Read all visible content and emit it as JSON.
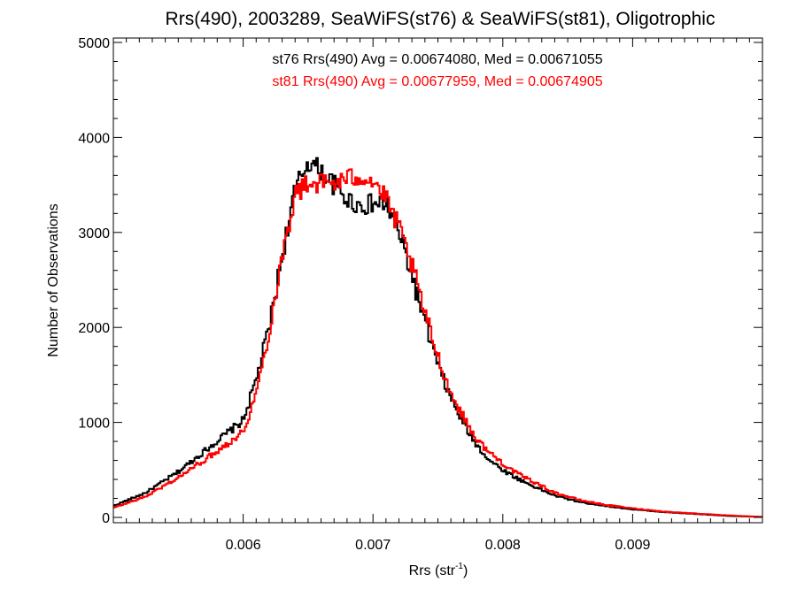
{
  "chart_data": {
    "type": "line",
    "title": "Rrs(490), 2003289, SeaWiFS(st76) & SeaWiFS(st81), Oligotrophic",
    "xlabel": "Rrs (str",
    "xlabel_sup": "-1",
    "xlabel_close": ")",
    "ylabel": "Number of Observations",
    "xlim": [
      0.005,
      0.01
    ],
    "ylim": [
      0,
      5000
    ],
    "x_ticks": [
      0.006,
      0.007,
      0.008,
      0.009
    ],
    "x_tick_labels": [
      "0.006",
      "0.007",
      "0.008",
      "0.009"
    ],
    "y_ticks": [
      0,
      1000,
      2000,
      3000,
      4000,
      5000
    ],
    "y_tick_labels": [
      "0",
      "1000",
      "2000",
      "3000",
      "4000",
      "5000"
    ],
    "grid": false,
    "step": true,
    "legend": [
      {
        "text": "st76 Rrs(490) Avg = 0.00674080, Med = 0.00671055",
        "color": "#000000"
      },
      {
        "text": "st81 Rrs(490) Avg = 0.00677959, Med = 0.00674905",
        "color": "#ff0000"
      }
    ],
    "x": [
      0.005,
      0.00525,
      0.0055,
      0.00575,
      0.006,
      0.0061,
      0.0062,
      0.0063,
      0.0064,
      0.0065,
      0.0066,
      0.0067,
      0.0068,
      0.0069,
      0.007,
      0.0071,
      0.0072,
      0.0073,
      0.0074,
      0.0075,
      0.0076,
      0.0077,
      0.0078,
      0.0079,
      0.008,
      0.0081,
      0.0082,
      0.0083,
      0.0084,
      0.0086,
      0.0088,
      0.009,
      0.00925,
      0.0095,
      0.00975,
      0.01
    ],
    "series": [
      {
        "color": "#000000",
        "values": [
          120,
          260,
          480,
          750,
          1020,
          1450,
          2000,
          2750,
          3450,
          3750,
          3650,
          3500,
          3350,
          3280,
          3300,
          3300,
          3000,
          2550,
          2050,
          1600,
          1250,
          980,
          760,
          600,
          500,
          420,
          350,
          290,
          230,
          160,
          120,
          85,
          55,
          35,
          15,
          5
        ]
      },
      {
        "color": "#ff0000",
        "values": [
          100,
          220,
          420,
          650,
          900,
          1300,
          1950,
          2750,
          3400,
          3520,
          3520,
          3520,
          3560,
          3600,
          3550,
          3350,
          3050,
          2650,
          2150,
          1700,
          1300,
          1050,
          820,
          680,
          570,
          470,
          400,
          330,
          260,
          180,
          130,
          95,
          60,
          40,
          20,
          5
        ]
      }
    ]
  }
}
